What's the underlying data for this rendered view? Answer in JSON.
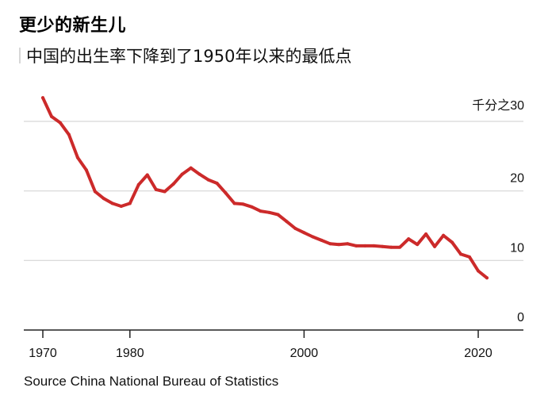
{
  "title": "更少的新生儿",
  "subtitle": "中国的出生率下降到了1950年以来的最低点",
  "source": "Source China National Bureau of Statistics",
  "chart_data": {
    "type": "line",
    "unit_label": "千分之",
    "xlim": [
      1970,
      2021
    ],
    "ylim": [
      0,
      30
    ],
    "x_ticks": [
      1970,
      1980,
      2000,
      2020
    ],
    "y_ticks": [
      0,
      10,
      20,
      30
    ],
    "grid": true,
    "line_color": "#cc2a2a",
    "series": [
      {
        "x": [
          1970,
          1971,
          1972,
          1973,
          1974,
          1975,
          1976,
          1977,
          1978,
          1979,
          1980,
          1981,
          1982,
          1983,
          1984,
          1985,
          1986,
          1987,
          1988,
          1989,
          1990,
          1991,
          1992,
          1993,
          1994,
          1995,
          1996,
          1997,
          1998,
          1999,
          2000,
          2001,
          2002,
          2003,
          2004,
          2005,
          2006,
          2007,
          2008,
          2009,
          2010,
          2011,
          2012,
          2013,
          2014,
          2015,
          2016,
          2017,
          2018,
          2019,
          2020,
          2021
        ],
        "values": [
          33.4,
          30.7,
          29.8,
          28.1,
          24.8,
          23.0,
          19.9,
          18.9,
          18.2,
          17.8,
          18.2,
          20.9,
          22.3,
          20.2,
          19.9,
          21.0,
          22.4,
          23.3,
          22.4,
          21.6,
          21.1,
          19.7,
          18.2,
          18.1,
          17.7,
          17.1,
          16.9,
          16.6,
          15.6,
          14.6,
          14.0,
          13.4,
          12.9,
          12.4,
          12.3,
          12.4,
          12.1,
          12.1,
          12.1,
          12.0,
          11.9,
          11.9,
          13.1,
          12.3,
          13.8,
          12.0,
          13.6,
          12.6,
          10.9,
          10.5,
          8.5,
          7.5
        ]
      }
    ]
  }
}
